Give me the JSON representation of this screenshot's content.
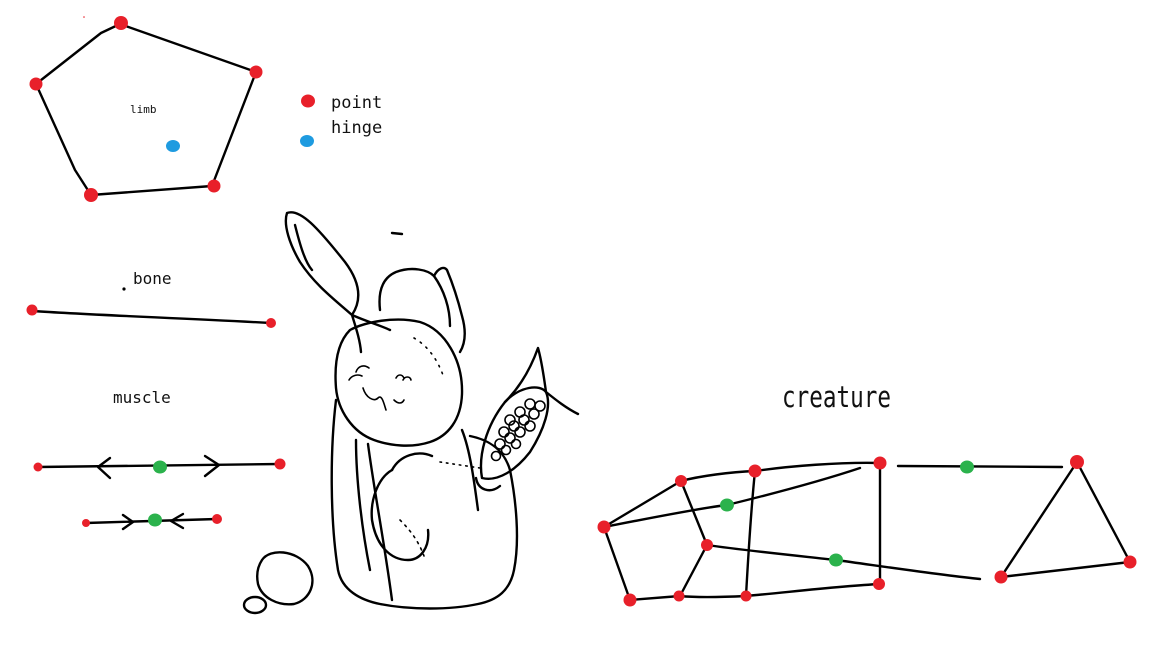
{
  "colors": {
    "point": "#e8202a",
    "hinge": "#1e9be0",
    "muscle_node": "#2bb24c",
    "ink": "#000000"
  },
  "legend": {
    "point": "point",
    "hinge": "hinge"
  },
  "labels": {
    "limb": "limb",
    "bone": "bone",
    "muscle": "muscle",
    "creature": "creature"
  }
}
